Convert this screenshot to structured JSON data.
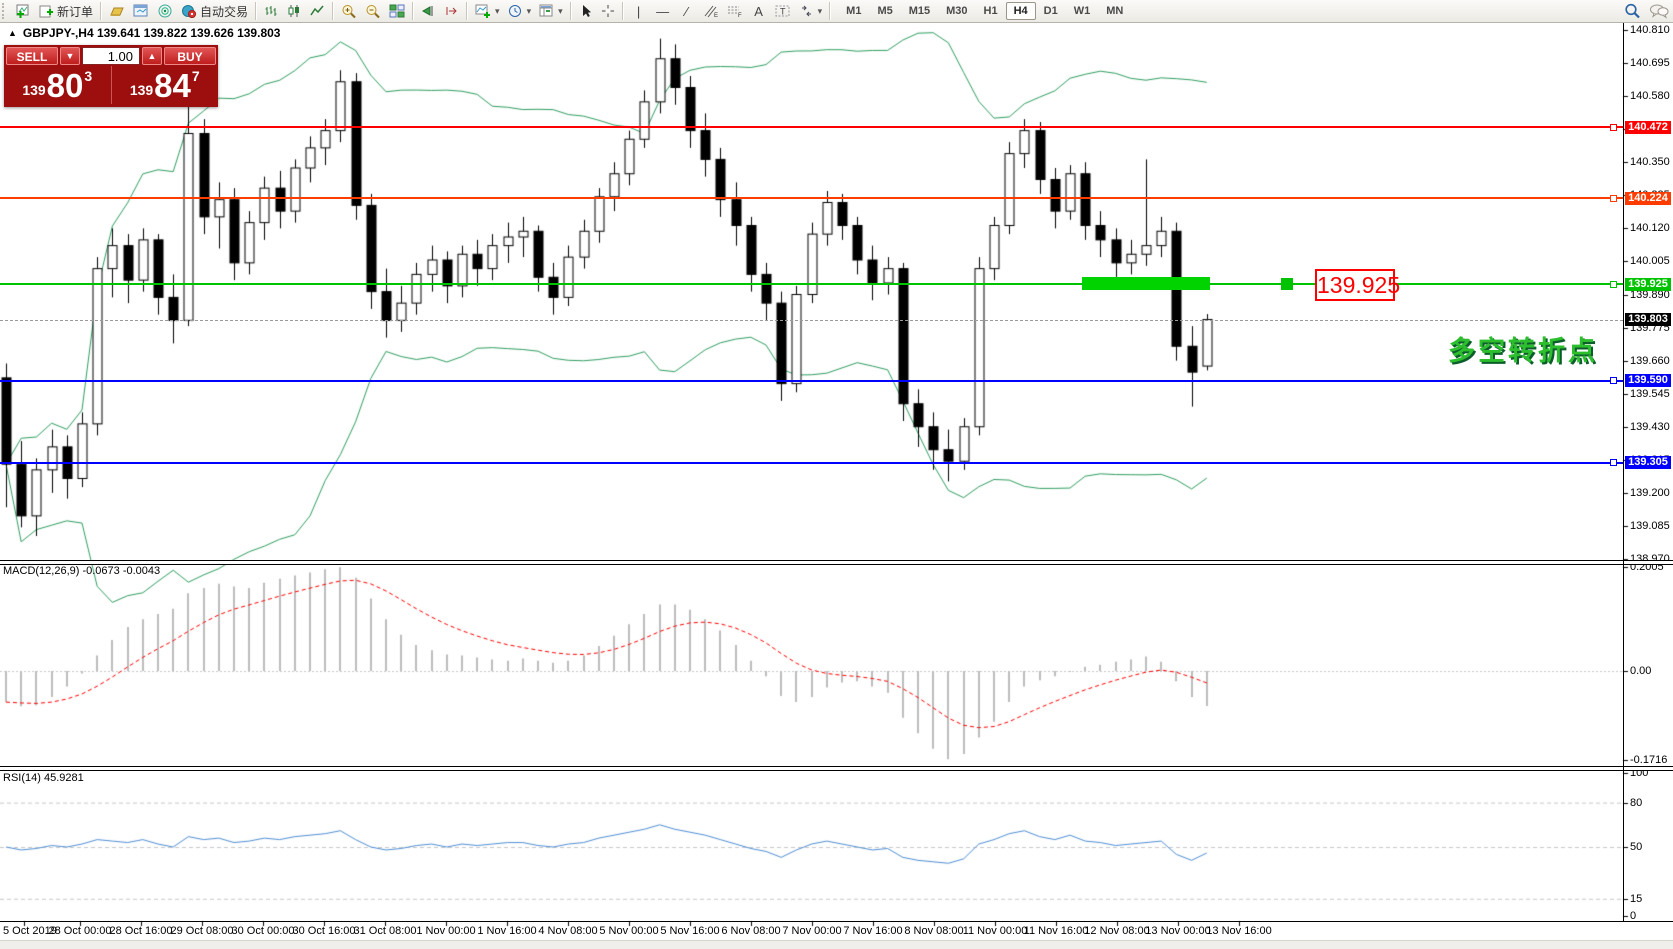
{
  "toolbar": {
    "new_order_label": "新订单",
    "auto_trading_label": "自动交易",
    "text_tool_label": "A",
    "label_tool_label": "T",
    "timeframes": [
      "M1",
      "M5",
      "M15",
      "M30",
      "H1",
      "H4",
      "D1",
      "W1",
      "MN"
    ],
    "active_timeframe": "H4"
  },
  "symbol_header": {
    "collapse_icon": "▲",
    "text": "GBPJPY-,H4  139.641 139.822 139.626 139.803"
  },
  "trade_panel": {
    "sell_label": "SELL",
    "buy_label": "BUY",
    "volume": "1.00",
    "spin_down": "▼",
    "spin_up": "▲",
    "sell_price_small": "139",
    "sell_price_big": "80",
    "sell_price_sup": "3",
    "buy_price_small": "139",
    "buy_price_big": "84",
    "buy_price_sup": "7"
  },
  "annotations": {
    "trend_text": "多空转折点",
    "price_callout": "139.925"
  },
  "chart_data": [
    {
      "type": "candlestick",
      "title": "GBPJPY-,H4",
      "y_axis": {
        "min": 138.97,
        "max": 140.81,
        "ticks": [
          "140.810",
          "140.695",
          "140.580",
          "140.465",
          "140.350",
          "140.235",
          "140.120",
          "140.005",
          "139.890",
          "139.775",
          "139.660",
          "139.545",
          "139.430",
          "139.315",
          "139.200",
          "139.085",
          "138.970"
        ]
      },
      "x_axis": {
        "labels": [
          "5 Oct 2019",
          "28 Oct 00:00",
          "28 Oct 16:00",
          "29 Oct 08:00",
          "30 Oct 00:00",
          "30 Oct 16:00",
          "31 Oct 08:00",
          "1 Nov 00:00",
          "1 Nov 16:00",
          "4 Nov 08:00",
          "5 Nov 00:00",
          "5 Nov 16:00",
          "6 Nov 08:00",
          "7 Nov 00:00",
          "7 Nov 16:00",
          "8 Nov 08:00",
          "11 Nov 00:00",
          "11 Nov 16:00",
          "12 Nov 08:00",
          "13 Nov 00:00",
          "13 Nov 16:00"
        ]
      },
      "overlays": [
        {
          "name": "Bollinger Bands",
          "period": 20,
          "deviation": 2,
          "color": "#2f9e60"
        }
      ],
      "hlines": [
        {
          "price": 140.472,
          "label": "140.472",
          "color": "#ff0000"
        },
        {
          "price": 140.224,
          "label": "140.224",
          "color": "#ff3c00"
        },
        {
          "price": 139.925,
          "label": "139.925",
          "color": "#00c300",
          "highlighted": true
        },
        {
          "price": 139.59,
          "label": "139.590",
          "color": "#0000ff"
        },
        {
          "price": 139.305,
          "label": "139.305",
          "color": "#0000ff"
        }
      ],
      "current_price": {
        "value": 139.803,
        "label": "139.803"
      },
      "ohlc": [
        [
          139.6,
          139.65,
          139.15,
          139.3
        ],
        [
          139.3,
          139.38,
          139.08,
          139.12
        ],
        [
          139.12,
          139.32,
          139.05,
          139.28
        ],
        [
          139.28,
          139.42,
          139.2,
          139.36
        ],
        [
          139.36,
          139.4,
          139.18,
          139.25
        ],
        [
          139.25,
          139.48,
          139.22,
          139.44
        ],
        [
          139.44,
          140.02,
          139.4,
          139.98
        ],
        [
          139.98,
          140.12,
          139.88,
          140.06
        ],
        [
          140.06,
          140.1,
          139.86,
          139.94
        ],
        [
          139.94,
          140.12,
          139.9,
          140.08
        ],
        [
          140.08,
          140.1,
          139.82,
          139.88
        ],
        [
          139.88,
          139.96,
          139.72,
          139.8
        ],
        [
          139.8,
          140.55,
          139.78,
          140.45
        ],
        [
          140.45,
          140.5,
          140.1,
          140.16
        ],
        [
          140.16,
          140.28,
          140.05,
          140.22
        ],
        [
          140.22,
          140.26,
          139.94,
          140.0
        ],
        [
          140.0,
          140.18,
          139.96,
          140.14
        ],
        [
          140.14,
          140.3,
          140.08,
          140.26
        ],
        [
          140.26,
          140.32,
          140.12,
          140.18
        ],
        [
          140.18,
          140.36,
          140.14,
          140.33
        ],
        [
          140.33,
          140.44,
          140.28,
          140.4
        ],
        [
          140.4,
          140.5,
          140.34,
          140.46
        ],
        [
          140.46,
          140.67,
          140.42,
          140.63
        ],
        [
          140.63,
          140.66,
          140.15,
          140.2
        ],
        [
          140.2,
          140.24,
          139.84,
          139.9
        ],
        [
          139.9,
          139.98,
          139.74,
          139.8
        ],
        [
          139.8,
          139.92,
          139.76,
          139.86
        ],
        [
          139.86,
          140.0,
          139.82,
          139.96
        ],
        [
          139.96,
          140.06,
          139.9,
          140.01
        ],
        [
          140.01,
          140.04,
          139.86,
          139.92
        ],
        [
          139.92,
          140.06,
          139.88,
          140.03
        ],
        [
          140.03,
          140.08,
          139.92,
          139.98
        ],
        [
          139.98,
          140.1,
          139.94,
          140.06
        ],
        [
          140.06,
          140.14,
          140.0,
          140.09
        ],
        [
          140.09,
          140.16,
          140.02,
          140.11
        ],
        [
          140.11,
          140.13,
          139.9,
          139.95
        ],
        [
          139.95,
          140.0,
          139.82,
          139.88
        ],
        [
          139.88,
          140.06,
          139.85,
          140.02
        ],
        [
          140.02,
          140.15,
          139.98,
          140.11
        ],
        [
          140.11,
          140.26,
          140.07,
          140.23
        ],
        [
          140.23,
          140.35,
          140.18,
          140.31
        ],
        [
          140.31,
          140.46,
          140.27,
          140.43
        ],
        [
          140.43,
          140.6,
          140.4,
          140.56
        ],
        [
          140.56,
          140.78,
          140.52,
          140.71
        ],
        [
          140.71,
          140.76,
          140.55,
          140.61
        ],
        [
          140.61,
          140.65,
          140.4,
          140.46
        ],
        [
          140.46,
          140.52,
          140.3,
          140.36
        ],
        [
          140.36,
          140.4,
          140.16,
          140.22
        ],
        [
          140.22,
          140.28,
          140.06,
          140.13
        ],
        [
          140.13,
          140.16,
          139.9,
          139.96
        ],
        [
          139.96,
          140.0,
          139.8,
          139.86
        ],
        [
          139.86,
          139.9,
          139.52,
          139.58
        ],
        [
          139.58,
          139.92,
          139.55,
          139.89
        ],
        [
          139.89,
          140.14,
          139.86,
          140.1
        ],
        [
          140.1,
          140.25,
          140.06,
          140.21
        ],
        [
          140.21,
          140.24,
          140.08,
          140.13
        ],
        [
          140.13,
          140.16,
          139.96,
          140.01
        ],
        [
          140.01,
          140.06,
          139.87,
          139.93
        ],
        [
          139.93,
          140.02,
          139.89,
          139.98
        ],
        [
          139.98,
          140.0,
          139.45,
          139.51
        ],
        [
          139.51,
          139.56,
          139.36,
          139.43
        ],
        [
          139.43,
          139.48,
          139.28,
          139.35
        ],
        [
          139.35,
          139.42,
          139.24,
          139.31
        ],
        [
          139.31,
          139.46,
          139.28,
          139.43
        ],
        [
          139.43,
          140.02,
          139.4,
          139.98
        ],
        [
          139.98,
          140.16,
          139.94,
          140.13
        ],
        [
          140.13,
          140.42,
          140.1,
          140.38
        ],
        [
          140.38,
          140.5,
          140.33,
          140.46
        ],
        [
          140.46,
          140.49,
          140.24,
          140.29
        ],
        [
          140.29,
          140.33,
          140.12,
          140.18
        ],
        [
          140.18,
          140.34,
          140.15,
          140.31
        ],
        [
          140.31,
          140.35,
          140.08,
          140.13
        ],
        [
          140.13,
          140.18,
          140.02,
          140.08
        ],
        [
          140.08,
          140.12,
          139.95,
          140.0
        ],
        [
          140.0,
          140.08,
          139.96,
          140.03
        ],
        [
          140.03,
          140.36,
          139.99,
          140.06
        ],
        [
          140.06,
          140.16,
          140.02,
          140.11
        ],
        [
          140.11,
          140.14,
          139.66,
          139.71
        ],
        [
          139.71,
          139.78,
          139.5,
          139.62
        ],
        [
          139.641,
          139.822,
          139.626,
          139.803
        ]
      ]
    },
    {
      "type": "bar",
      "title": "MACD(12,26,9)",
      "label": "MACD(12,26,9) -0.0673 -0.0043",
      "axis_ticks": [
        "0.2005",
        "0.00",
        "-0.1716"
      ],
      "axis_values": [
        0.2005,
        0,
        -0.1716
      ],
      "signal_period": 9,
      "values": [
        -0.06,
        -0.068,
        -0.066,
        -0.05,
        -0.03,
        -0.005,
        0.03,
        0.06,
        0.085,
        0.1,
        0.11,
        0.12,
        0.15,
        0.16,
        0.168,
        0.163,
        0.16,
        0.17,
        0.178,
        0.184,
        0.19,
        0.196,
        0.2,
        0.18,
        0.14,
        0.1,
        0.07,
        0.05,
        0.04,
        0.032,
        0.03,
        0.026,
        0.022,
        0.02,
        0.024,
        0.02,
        0.016,
        0.02,
        0.03,
        0.048,
        0.068,
        0.09,
        0.11,
        0.128,
        0.128,
        0.118,
        0.1,
        0.078,
        0.05,
        0.02,
        -0.01,
        -0.048,
        -0.06,
        -0.05,
        -0.032,
        -0.022,
        -0.02,
        -0.03,
        -0.042,
        -0.09,
        -0.12,
        -0.15,
        -0.17,
        -0.16,
        -0.128,
        -0.098,
        -0.06,
        -0.03,
        -0.018,
        -0.01,
        -0.002,
        0.008,
        0.012,
        0.018,
        0.022,
        0.028,
        0.018,
        -0.02,
        -0.05,
        -0.0673
      ]
    },
    {
      "type": "line",
      "title": "RSI(14)",
      "label": "RSI(14) 45.9281",
      "axis_ticks": [
        "100",
        "80",
        "50",
        "15",
        "0"
      ],
      "axis_values": [
        100,
        80,
        50,
        15,
        0
      ],
      "levels": [
        80,
        50,
        15
      ],
      "color": "#4f8fd4",
      "values": [
        50,
        48,
        49,
        51,
        50,
        52,
        55,
        54,
        53,
        55,
        52,
        50,
        57,
        55,
        56,
        53,
        54,
        56,
        55,
        57,
        58,
        59,
        61,
        55,
        50,
        48,
        49,
        51,
        52,
        50,
        52,
        51,
        52,
        53,
        53,
        51,
        50,
        52,
        53,
        56,
        58,
        60,
        62,
        65,
        62,
        60,
        58,
        55,
        52,
        49,
        47,
        43,
        48,
        52,
        54,
        52,
        50,
        48,
        49,
        43,
        41,
        40,
        39,
        42,
        52,
        55,
        59,
        61,
        57,
        55,
        58,
        54,
        53,
        51,
        52,
        53,
        54,
        45,
        41,
        45.93
      ]
    }
  ]
}
